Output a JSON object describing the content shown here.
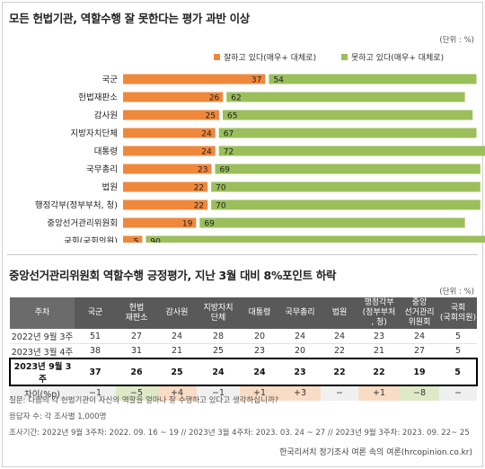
{
  "section1": {
    "title": "모든 헌법기관, 역할수행 잘 못한다는 평가 과반 이상",
    "unit": "(단위 : %)",
    "legend_good": "잘하고 있다(매우+ 대체로)",
    "legend_bad": "못하고 있다(매우+ 대체로)"
  },
  "chart_data": {
    "type": "bar",
    "orientation": "horizontal",
    "stacked": true,
    "categories": [
      "국군",
      "헌법재판소",
      "감사원",
      "지방자치단체",
      "대통령",
      "국무총리",
      "법원",
      "행정각부(정부부처, 청)",
      "중앙선거관리위원회",
      "국회(국회의원)"
    ],
    "series": [
      {
        "name": "잘하고 있다(매우+ 대체로)",
        "values": [
          37,
          26,
          25,
          24,
          24,
          23,
          22,
          22,
          19,
          5
        ]
      },
      {
        "name": "못하고 있다(매우+ 대체로)",
        "values": [
          54,
          62,
          65,
          67,
          72,
          69,
          70,
          70,
          69,
          90
        ]
      }
    ],
    "title": "모든 헌법기관, 역할수행 잘 못한다는 평가 과반 이상",
    "unit": "%",
    "legend_position": "top-right",
    "colors": {
      "good": "#f0883c",
      "bad": "#9bbf5a"
    }
  },
  "section2": {
    "title": "중앙선거관리위원회 역할수행 긍정평가, 지난 3월 대비 8%포인트 하락",
    "unit": "(단위 : %)",
    "columns": [
      "주차",
      "국군",
      "헌법\n재판소",
      "감사원",
      "지방자치\n단체",
      "대통령",
      "국무총리",
      "법원",
      "행정각부\n(정부부처\n, 청)",
      "중앙\n선거관리\n위원회",
      "국회\n(국회의원)"
    ],
    "rows": [
      {
        "label": "2022년 9월 3주",
        "values": [
          "51",
          "27",
          "24",
          "28",
          "20",
          "24",
          "24",
          "23",
          "24",
          "5"
        ]
      },
      {
        "label": "2023년 3월 4주",
        "values": [
          "38",
          "31",
          "21",
          "25",
          "23",
          "20",
          "22",
          "21",
          "27",
          "5"
        ]
      },
      {
        "label": "2023년 9월 3주",
        "values": [
          "37",
          "26",
          "25",
          "24",
          "24",
          "23",
          "22",
          "22",
          "19",
          "5"
        ]
      },
      {
        "label": "차이(%p)",
        "values": [
          "−1",
          "−5",
          "+4",
          "−1",
          "+1",
          "+3",
          "−",
          "+1",
          "−8",
          "−"
        ]
      }
    ]
  },
  "notes": {
    "question": "질문:  다음의 각 헌법기관이 자신의 역할을 얼마나 잘 수행하고 있다고 생각하십니까?",
    "respondents": "응답자 수: 각 조사별 1,000명",
    "period": "조사기간: 2022년 9월 3주차: 2022. 09. 16 ~ 19 // 2023년 3월 4주차: 2023. 03. 24 ~ 27 // 2023년 9월 3주차: 2023. 09. 22~ 25",
    "source": "한국리서치 정기조사 여론 속의 여론(hrcopinion.co.kr)"
  }
}
